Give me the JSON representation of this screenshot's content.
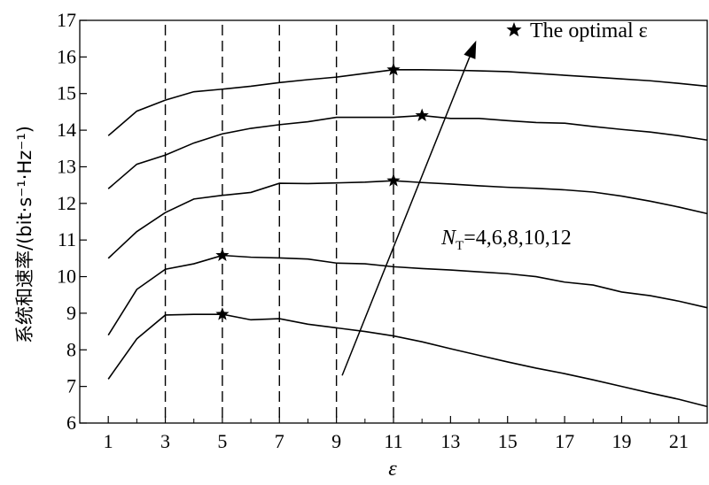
{
  "chart_data": {
    "type": "line",
    "xlabel": "ε",
    "ylabel": "系统和速率/(bit·s⁻¹·Hz⁻¹)",
    "xlim": [
      0,
      22
    ],
    "ylim": [
      6,
      17
    ],
    "xticks": [
      1,
      3,
      5,
      7,
      9,
      11,
      13,
      15,
      17,
      19,
      21
    ],
    "yticks": [
      6,
      7,
      8,
      9,
      10,
      11,
      12,
      13,
      14,
      15,
      16,
      17
    ],
    "grid": false,
    "vlines": [
      3,
      5,
      7,
      9,
      11
    ],
    "legend": {
      "label": "The optimal ε",
      "marker": "star",
      "position": "top-right"
    },
    "annotation": {
      "label_main": "N",
      "label_sub": "T",
      "label_rest": "=4,6,8,10,12",
      "arrow_from": [
        9.2,
        7.3
      ],
      "arrow_to": [
        13.9,
        16.45
      ]
    },
    "series": [
      {
        "x": [
          1,
          2,
          3,
          4,
          5,
          6,
          7,
          8,
          9,
          10,
          11,
          12,
          13,
          14,
          15,
          16,
          17,
          18,
          19,
          20,
          21,
          22
        ],
        "y": [
          7.2,
          8.3,
          8.95,
          8.97,
          8.97,
          8.82,
          8.85,
          8.7,
          8.6,
          8.5,
          8.38,
          8.22,
          8.03,
          7.85,
          7.67,
          7.5,
          7.35,
          7.18,
          7.0,
          6.82,
          6.65,
          6.45
        ],
        "optimal_x": 5
      },
      {
        "x": [
          1,
          2,
          3,
          4,
          5,
          6,
          7,
          8,
          9,
          10,
          11,
          12,
          13,
          14,
          15,
          16,
          17,
          18,
          19,
          20,
          21,
          22
        ],
        "y": [
          8.4,
          9.65,
          10.2,
          10.35,
          10.58,
          10.53,
          10.51,
          10.48,
          10.37,
          10.35,
          10.27,
          10.22,
          10.18,
          10.13,
          10.08,
          10.0,
          9.85,
          9.77,
          9.58,
          9.48,
          9.33,
          9.15
        ],
        "optimal_x": 5
      },
      {
        "x": [
          1,
          2,
          3,
          4,
          5,
          6,
          7,
          8,
          9,
          10,
          11,
          12,
          13,
          14,
          15,
          16,
          17,
          18,
          19,
          20,
          21,
          22
        ],
        "y": [
          10.5,
          11.23,
          11.75,
          12.12,
          12.22,
          12.3,
          12.55,
          12.54,
          12.56,
          12.58,
          12.62,
          12.57,
          12.53,
          12.48,
          12.44,
          12.41,
          12.37,
          12.31,
          12.2,
          12.06,
          11.9,
          11.72
        ],
        "optimal_x": 11
      },
      {
        "x": [
          1,
          2,
          3,
          4,
          5,
          6,
          7,
          8,
          9,
          10,
          11,
          12,
          13,
          14,
          15,
          16,
          17,
          18,
          19,
          20,
          21,
          22
        ],
        "y": [
          12.4,
          13.07,
          13.32,
          13.65,
          13.9,
          14.05,
          14.15,
          14.23,
          14.35,
          14.35,
          14.35,
          14.4,
          14.32,
          14.32,
          14.26,
          14.21,
          14.19,
          14.1,
          14.02,
          13.95,
          13.85,
          13.73
        ],
        "optimal_x": 12
      },
      {
        "x": [
          1,
          2,
          3,
          4,
          5,
          6,
          7,
          8,
          9,
          10,
          11,
          12,
          13,
          14,
          15,
          16,
          17,
          18,
          19,
          20,
          21,
          22
        ],
        "y": [
          13.85,
          14.52,
          14.82,
          15.05,
          15.12,
          15.2,
          15.3,
          15.38,
          15.45,
          15.55,
          15.65,
          15.65,
          15.64,
          15.62,
          15.6,
          15.55,
          15.5,
          15.45,
          15.4,
          15.35,
          15.28,
          15.2
        ],
        "optimal_x": 11
      }
    ]
  }
}
